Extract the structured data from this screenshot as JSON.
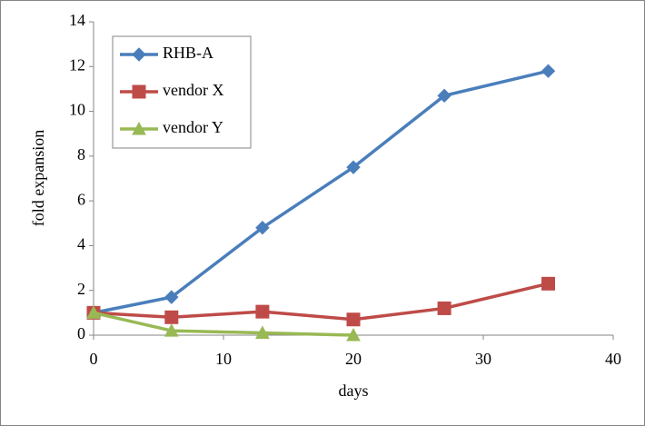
{
  "chart_data": {
    "type": "line",
    "xlabel": "days",
    "ylabel": "fold expansion",
    "xlim": [
      0,
      40
    ],
    "xticks": [
      0,
      10,
      20,
      30,
      40
    ],
    "ylim": [
      0,
      14
    ],
    "yticks": [
      0,
      2,
      4,
      6,
      8,
      10,
      12,
      14
    ],
    "grid": false,
    "legend": "upper left",
    "series": [
      {
        "name": "RHB-A",
        "color": "#4a7ebb",
        "marker": "diamond",
        "x": [
          0,
          6,
          13,
          20,
          27,
          35
        ],
        "values": [
          1,
          1.7,
          4.8,
          7.5,
          10.7,
          11.8
        ]
      },
      {
        "name": "vendor X",
        "color": "#be4b48",
        "marker": "square",
        "x": [
          0,
          6,
          13,
          20,
          27,
          35
        ],
        "values": [
          1,
          0.8,
          1.05,
          0.7,
          1.2,
          2.3
        ]
      },
      {
        "name": "vendor Y",
        "color": "#98b954",
        "marker": "triangle",
        "x": [
          0,
          6,
          13,
          20
        ],
        "values": [
          1,
          0.2,
          0.1,
          0
        ]
      }
    ]
  }
}
